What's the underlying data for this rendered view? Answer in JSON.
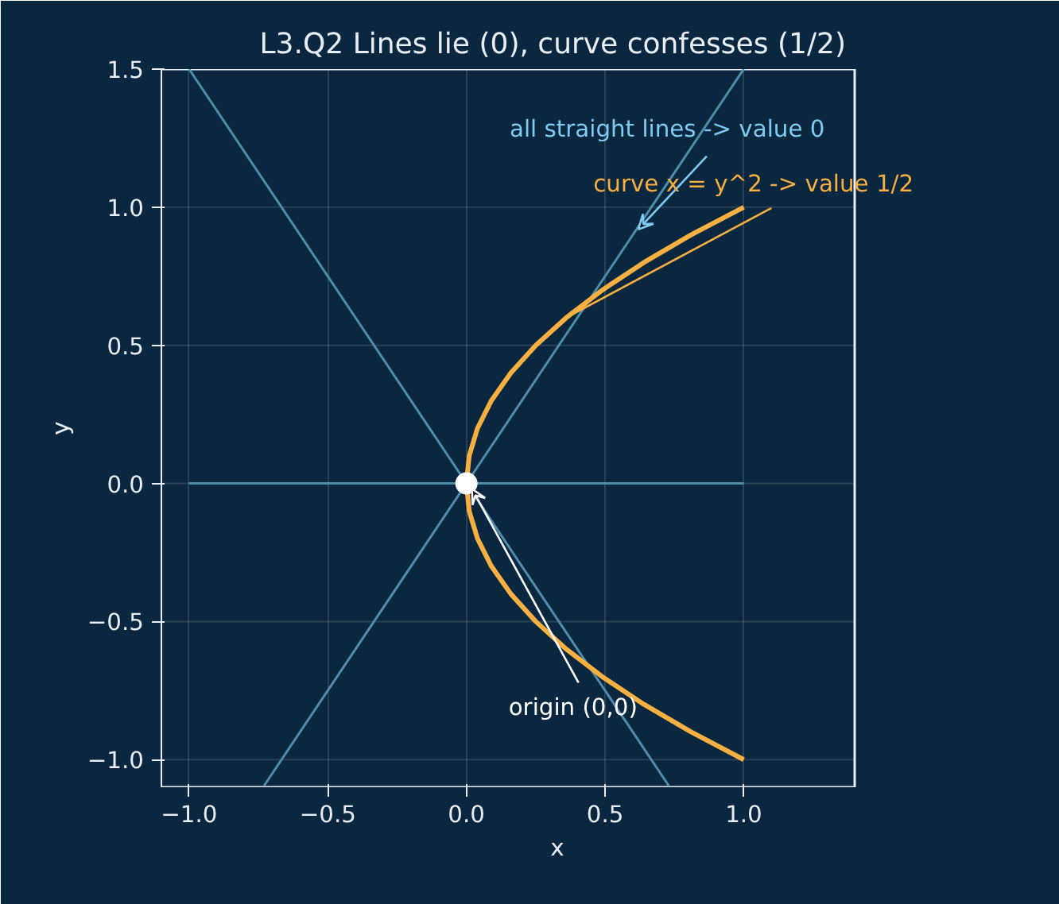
{
  "chart_data": {
    "type": "line",
    "title": "L3.Q2  Lines lie (0), curve confesses (1/2)",
    "xlabel": "x",
    "ylabel": "y",
    "xlim": [
      -1.1,
      1.4
    ],
    "ylim": [
      -1.1,
      1.5
    ],
    "xticks": [
      {
        "value": -1,
        "label": "−1.0"
      },
      {
        "value": -0.5,
        "label": "−0.5"
      },
      {
        "value": 0,
        "label": "0.0"
      },
      {
        "value": 0.5,
        "label": "0.5"
      },
      {
        "value": 1,
        "label": "1.0"
      }
    ],
    "yticks": [
      {
        "value": -1,
        "label": "−1.0"
      },
      {
        "value": -0.5,
        "label": "−0.5"
      },
      {
        "value": 0,
        "label": "0.0"
      },
      {
        "value": 0.5,
        "label": "0.5"
      },
      {
        "value": 1,
        "label": "1.0"
      },
      {
        "value": 1.5,
        "label": "1.5"
      }
    ],
    "grid": true,
    "series": [
      {
        "color": "#4f8ea8",
        "x": [
          -1,
          0,
          1
        ],
        "values": [
          0,
          0,
          0
        ]
      },
      {
        "color": "#4f8ea8",
        "x": [
          -1,
          0,
          0.73
        ],
        "values": [
          1.5,
          0,
          -1.095
        ]
      },
      {
        "color": "#4f8ea8",
        "x": [
          -0.73,
          0,
          1
        ],
        "values": [
          -1.095,
          0,
          1.5
        ]
      },
      {
        "color": "#f5b041",
        "x": [
          1,
          0.81,
          0.64,
          0.49,
          0.36,
          0.25,
          0.16,
          0.09,
          0.04,
          0.01,
          0,
          0.01,
          0.04,
          0.09,
          0.16,
          0.25,
          0.36,
          0.49,
          0.64,
          0.81,
          1
        ],
        "values": [
          -1,
          -0.9,
          -0.8,
          -0.7,
          -0.6,
          -0.5,
          -0.4,
          -0.3,
          -0.2,
          -0.1,
          0,
          0.1,
          0.2,
          0.3,
          0.4,
          0.5,
          0.6,
          0.7,
          0.8,
          0.9,
          1
        ]
      },
      {
        "type": "scatter",
        "marker": "circle",
        "color": "#ffffff",
        "x": [
          0
        ],
        "values": [
          0
        ]
      }
    ],
    "annotations": [
      {
        "text": "all straight lines  ->  value 0",
        "x": 0.62,
        "y": 0.92
      },
      {
        "text": "curve x = y^2  ->  value 1/2",
        "x": 0.36,
        "y": 0.6
      },
      {
        "text": "origin (0,0)",
        "x": 0.02,
        "y": -0.02
      }
    ]
  }
}
